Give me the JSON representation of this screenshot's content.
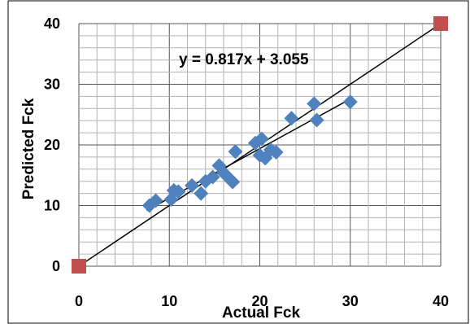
{
  "chart_data": {
    "type": "scatter",
    "title": "",
    "xlabel": "Actual Fck",
    "ylabel": "Predicted Fck",
    "xlim": [
      0,
      40
    ],
    "ylim": [
      0,
      40
    ],
    "x_ticks": [
      "0",
      "10",
      "20",
      "30",
      "40"
    ],
    "y_ticks": [
      "0",
      "10",
      "20",
      "30",
      "40"
    ],
    "grid": true,
    "legend": "none",
    "annotation": "y = 0.817x + 3.055",
    "marker_color": "#4f81bd",
    "reference_color": "#c0504d",
    "series": [
      {
        "marker": "diamond",
        "points": [
          [
            7.8,
            10.0
          ],
          [
            8.5,
            10.8
          ],
          [
            10.2,
            11.0
          ],
          [
            10.5,
            12.5
          ],
          [
            11.0,
            12.3
          ],
          [
            12.5,
            13.3
          ],
          [
            13.5,
            12.0
          ],
          [
            14.0,
            14.0
          ],
          [
            14.8,
            14.7
          ],
          [
            15.5,
            16.6
          ],
          [
            16.0,
            15.4
          ],
          [
            16.8,
            14.2
          ],
          [
            17.0,
            13.9
          ],
          [
            17.3,
            18.9
          ],
          [
            19.5,
            20.3
          ],
          [
            20.0,
            18.3
          ],
          [
            20.2,
            21.0
          ],
          [
            20.6,
            17.8
          ],
          [
            21.2,
            19.2
          ],
          [
            21.8,
            18.8
          ],
          [
            23.5,
            24.4
          ],
          [
            26.0,
            26.8
          ],
          [
            26.3,
            24.1
          ],
          [
            30.0,
            27.1
          ]
        ]
      },
      {
        "marker": "square",
        "points": [
          [
            0,
            0
          ],
          [
            40,
            40
          ]
        ]
      }
    ],
    "trendline": {
      "slope": 0.817,
      "intercept": 3.055,
      "x_range": [
        7.5,
        30.0
      ]
    },
    "reference_line": {
      "from": [
        0,
        0
      ],
      "to": [
        40,
        40
      ]
    }
  }
}
